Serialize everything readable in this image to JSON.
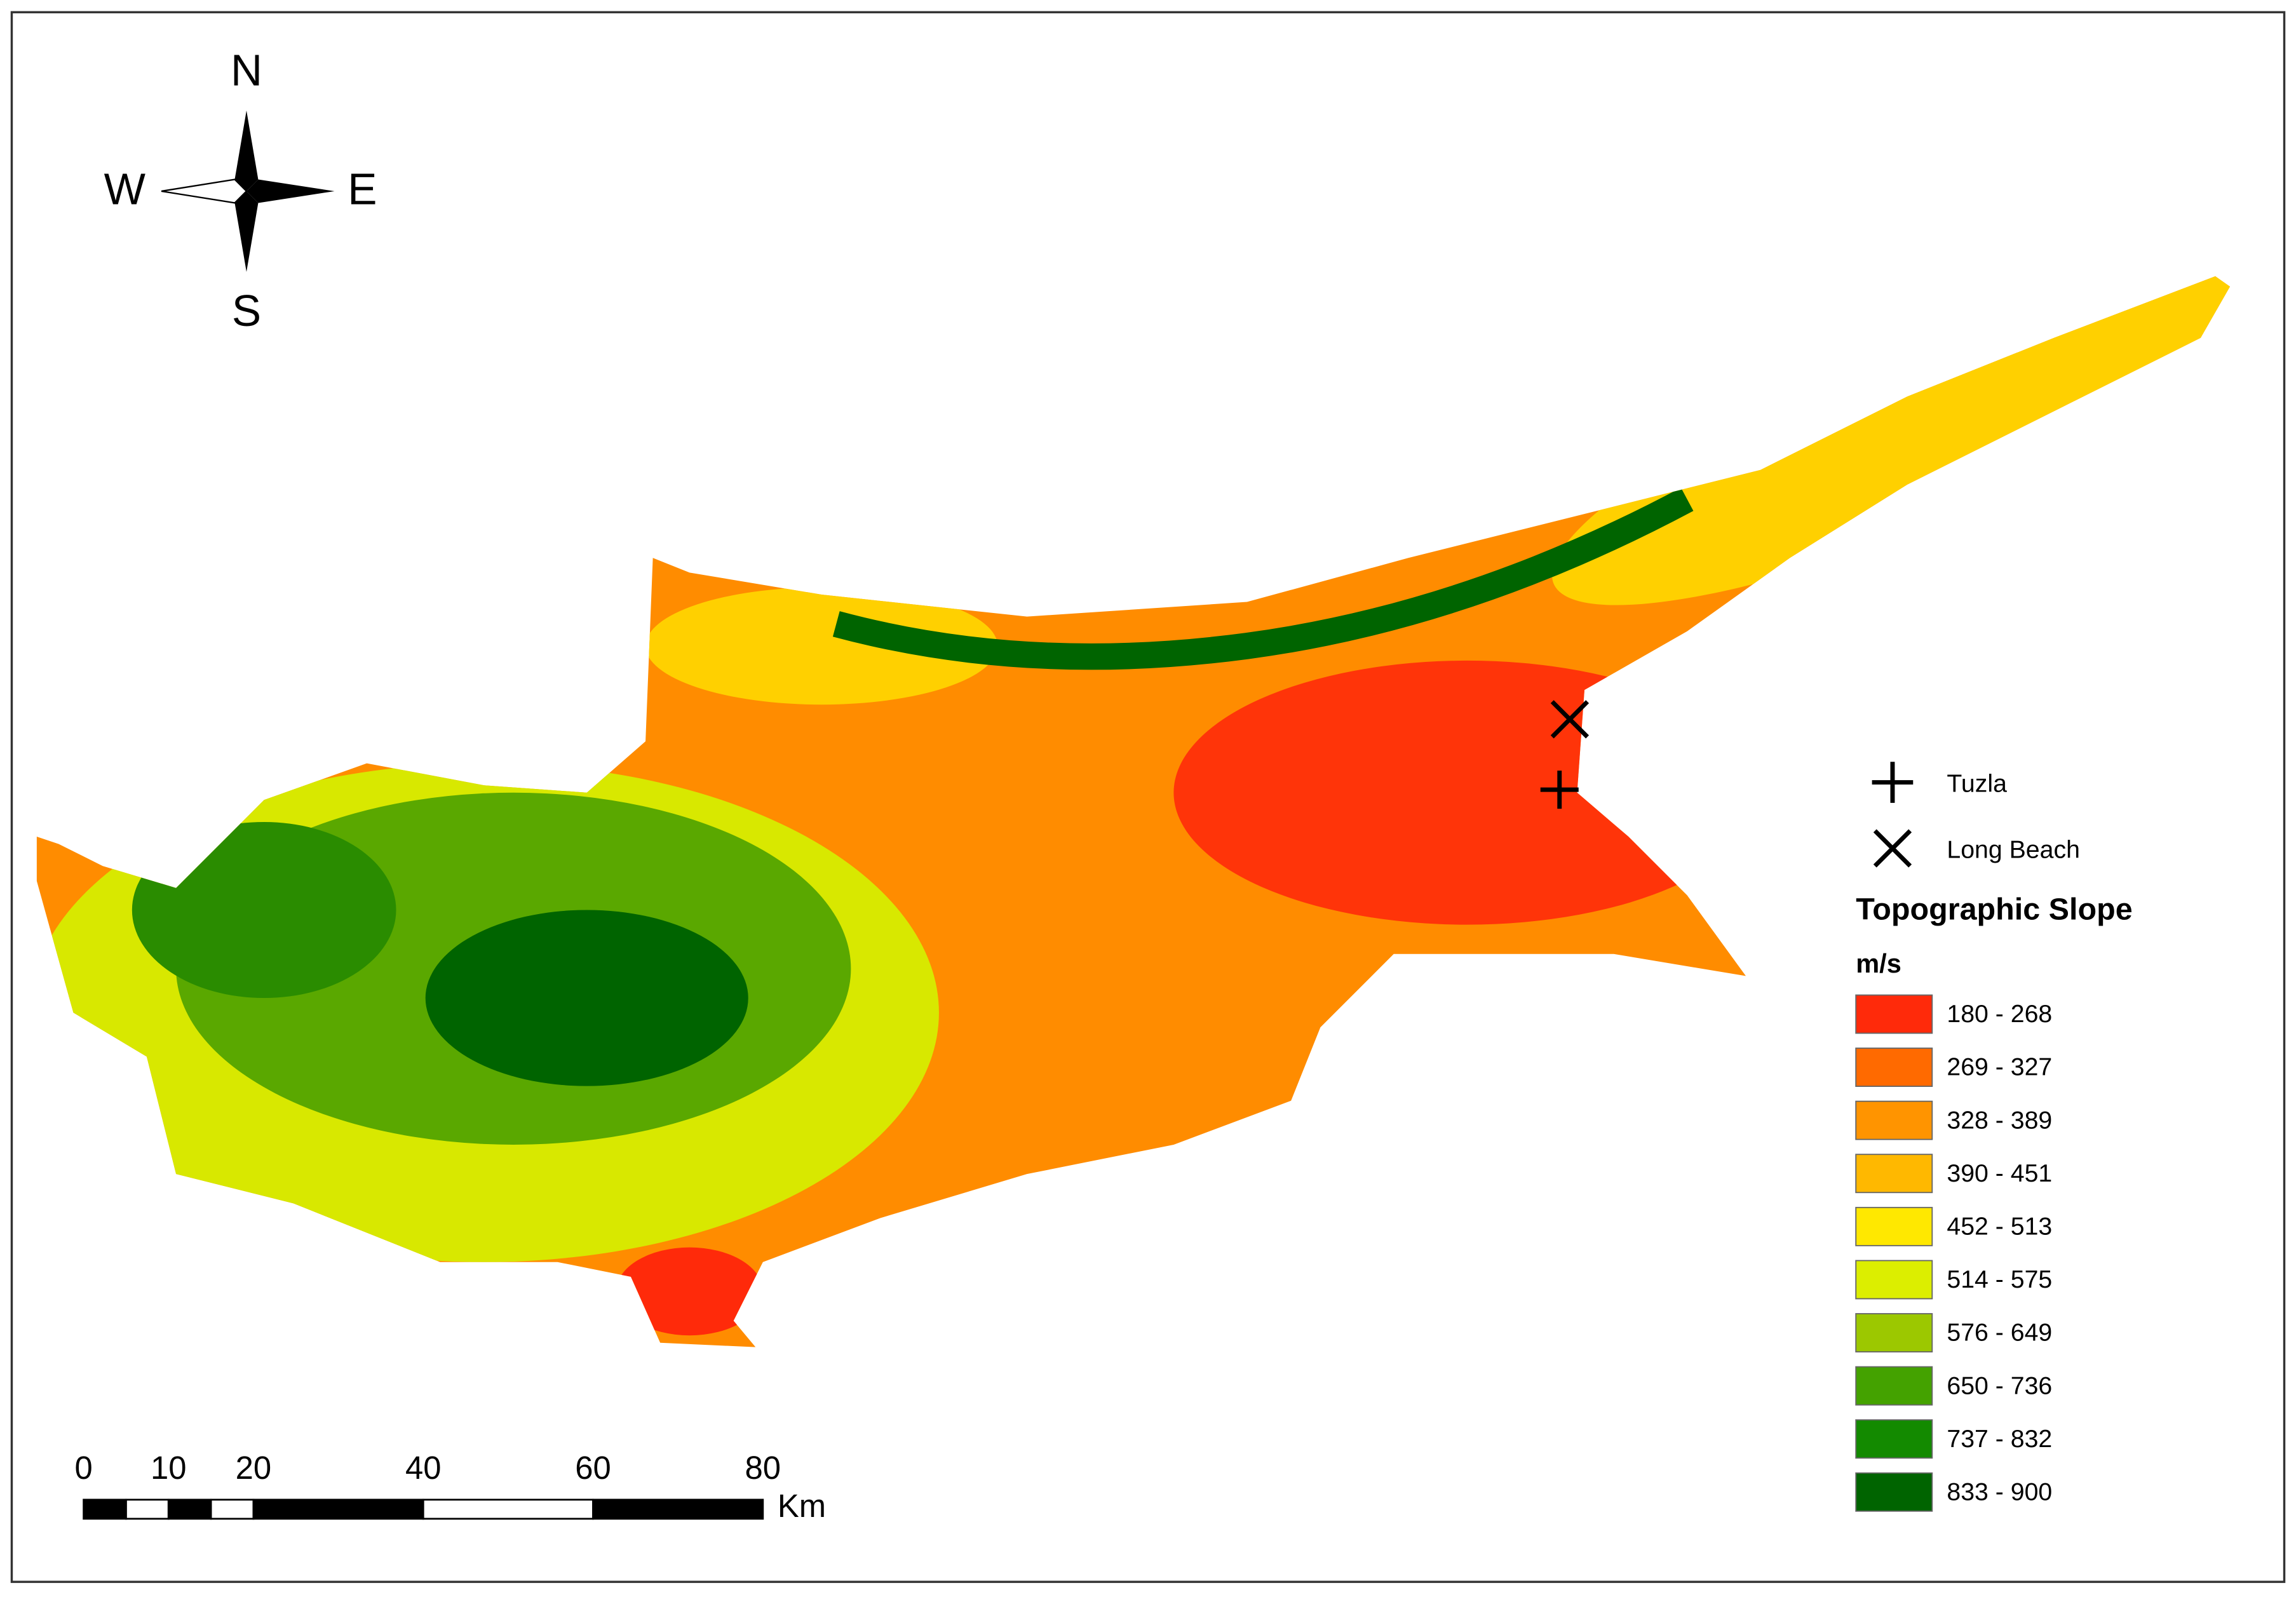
{
  "compass": {
    "north": "N",
    "south": "S",
    "west": "W",
    "east": "E"
  },
  "markers": [
    {
      "label": "Tuzla",
      "symbol": "plus"
    },
    {
      "label": "Long Beach",
      "symbol": "cross"
    }
  ],
  "legend": {
    "title": "Topographic Slope",
    "unit": "m/s",
    "classes": [
      {
        "label": "180 - 268",
        "color": "#ff2a0a"
      },
      {
        "label": "269 - 327",
        "color": "#ff6a00"
      },
      {
        "label": "328 - 389",
        "color": "#ff9400"
      },
      {
        "label": "390 - 451",
        "color": "#ffb800"
      },
      {
        "label": "452 - 513",
        "color": "#ffe800"
      },
      {
        "label": "514 - 575",
        "color": "#dcee00"
      },
      {
        "label": "576 - 649",
        "color": "#9cc800"
      },
      {
        "label": "650 - 736",
        "color": "#44a200"
      },
      {
        "label": "737 - 832",
        "color": "#138a00"
      },
      {
        "label": "833 - 900",
        "color": "#006400"
      }
    ]
  },
  "scale_bar": {
    "ticks": [
      0,
      10,
      20,
      40,
      60,
      80
    ],
    "unit": "Km"
  }
}
